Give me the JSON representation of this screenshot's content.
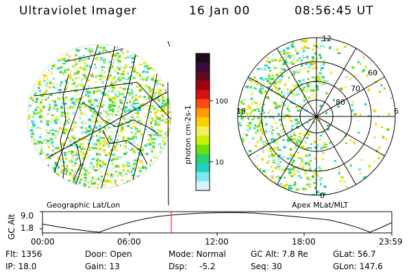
{
  "header": {
    "instrument": "Ultraviolet Imager",
    "date": "16 Jan 00",
    "time": "08:56:45 UT"
  },
  "left_panel": {
    "caption": "Geographic Lat/Lon"
  },
  "right_panel": {
    "caption": "Apex MLat/MLT",
    "lat_labels": [
      "60",
      "70",
      "80"
    ],
    "mlt_labels": [
      "12",
      "18",
      "6",
      "0"
    ]
  },
  "colorbar": {
    "label": "photon cm-2s-1",
    "tick_labels": [
      "100",
      "10"
    ],
    "colors": [
      "#1a0a1a",
      "#3a0a3a",
      "#600a20",
      "#a00010",
      "#d81010",
      "#ff4818",
      "#ff9a00",
      "#ffd000",
      "#f0f060",
      "#c8f000",
      "#6ee000",
      "#2cd070",
      "#20d0c0",
      "#80e8f0",
      "#d8f4fa"
    ]
  },
  "altitude_plot": {
    "ylabel": "GC Alt",
    "y_ticks": [
      "9.0",
      "1.8"
    ],
    "x_ticks": [
      "00:00",
      "06:00",
      "12:00",
      "18:00",
      "23:59"
    ],
    "marker_color": "#e00000"
  },
  "status": {
    "flt": "Flt: 1356",
    "door": "Door: Open",
    "mode": "Mode: Normal",
    "gc_alt": "GC Alt: 7.8 Re",
    "glat": "GLat: 56.7",
    "ip": "IP: 18.0",
    "gain": "Gain: 13",
    "dsp_label": "Dsp:",
    "dsp_value": "-5.2",
    "seq": "Seq: 30",
    "glon": "GLon: 147.6"
  }
}
